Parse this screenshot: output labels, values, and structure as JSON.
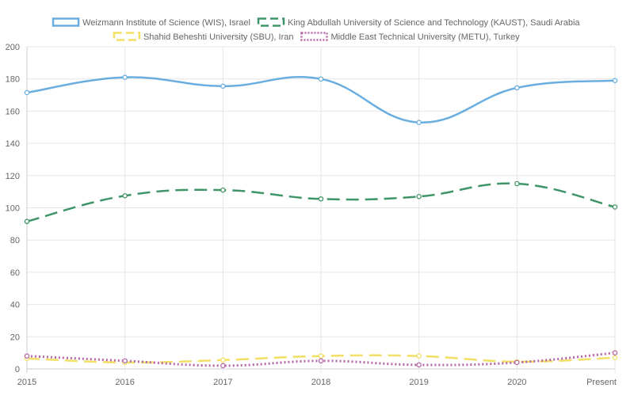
{
  "chart_data": {
    "type": "line",
    "title": "",
    "xlabel": "",
    "ylabel": "",
    "categories": [
      "2015",
      "2016",
      "2017",
      "2018",
      "2019",
      "2020",
      "Present"
    ],
    "ylim": [
      0,
      200
    ],
    "yticks": [
      0,
      20,
      40,
      60,
      80,
      100,
      120,
      140,
      160,
      180,
      200
    ],
    "grid": true,
    "legend_position": "top",
    "series": [
      {
        "name": "Weizmann Institute of Science (WIS), Israel",
        "values": [
          171.5,
          181,
          175.5,
          180,
          153,
          174.5,
          179
        ],
        "color": "#6aaee0",
        "style": "solid"
      },
      {
        "name": "King Abdullah University of Science and Technology (KAUST), Saudi Arabia",
        "values": [
          91.5,
          107.5,
          111,
          105.5,
          107,
          115,
          100.5
        ],
        "color": "#3f9567",
        "style": "dashed"
      },
      {
        "name": "Shahid Beheshti University (SBU), Iran",
        "values": [
          6.5,
          4,
          5.5,
          8,
          8,
          4.5,
          7
        ],
        "color": "#f2df63",
        "style": "dashed"
      },
      {
        "name": "Middle East Technical University (METU), Turkey",
        "values": [
          8,
          5,
          2,
          5,
          2.5,
          4,
          10
        ],
        "color": "#b767a8",
        "style": "dotted"
      }
    ]
  }
}
